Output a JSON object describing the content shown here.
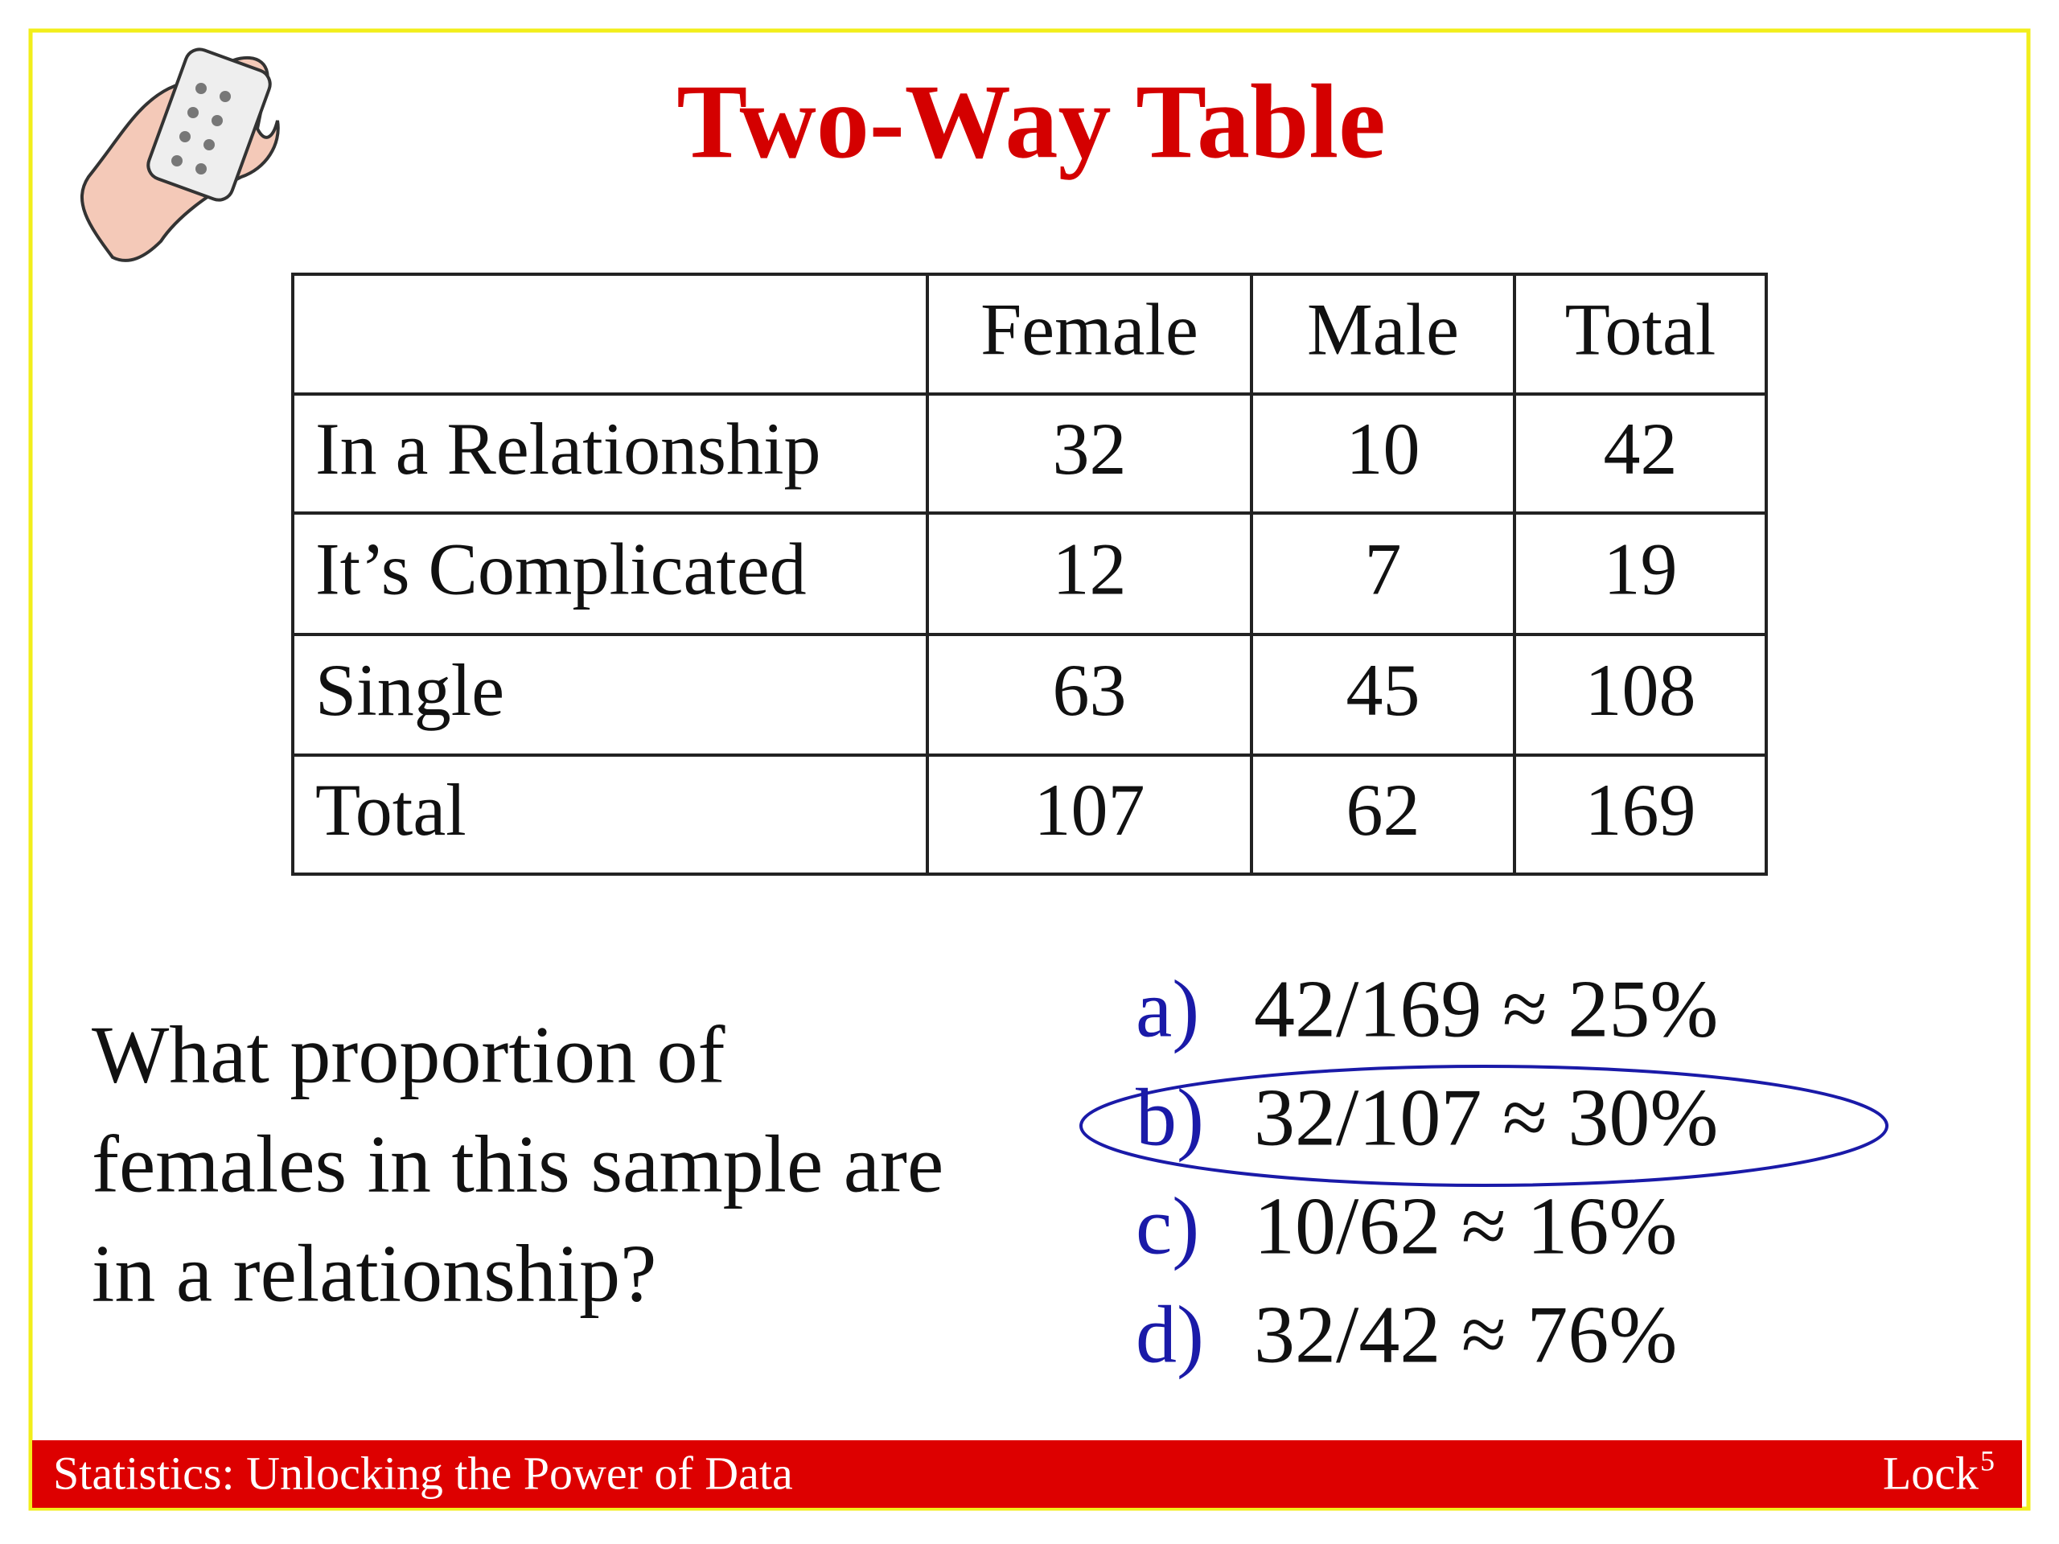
{
  "header": {
    "title": "Two-Way Table"
  },
  "table": {
    "columns": [
      "",
      "Female",
      "Male",
      "Total"
    ],
    "rows": [
      [
        "In a Relationship",
        32,
        10,
        42
      ],
      [
        "It’s Complicated",
        12,
        7,
        19
      ],
      [
        "Single",
        63,
        45,
        108
      ],
      [
        "Total",
        107,
        62,
        169
      ]
    ]
  },
  "question": [
    "What proportion of",
    "females in this sample are",
    "in a relationship?"
  ],
  "options": [
    {
      "letter": "a)",
      "text": "42/169 ≈ 25%"
    },
    {
      "letter": "b)",
      "text": "32/107 ≈ 30%",
      "circled": true
    },
    {
      "letter": "c)",
      "text": "10/62 ≈ 16%"
    },
    {
      "letter": "d)",
      "text": "32/42 ≈ 76%"
    }
  ],
  "footer": {
    "left": "Statistics: Unlocking the Power of Data",
    "right": "Lock",
    "right_sup": "5"
  }
}
